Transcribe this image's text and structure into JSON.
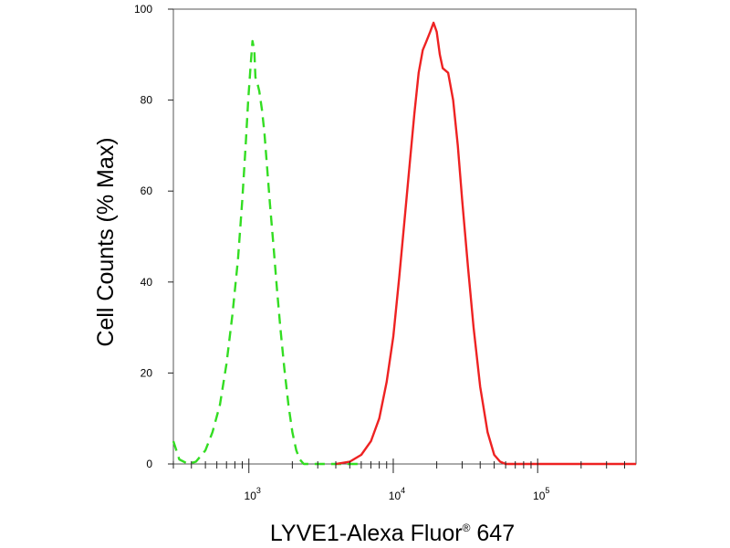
{
  "chart_data": {
    "type": "line",
    "title": "",
    "xlabel": "LYVE1-Alexa Fluor",
    "xlabel_superscript": "®",
    "xlabel_suffix": " 647",
    "ylabel": "Cell Counts (% Max)",
    "x_scale": "log",
    "xlim": [
      300,
      480000
    ],
    "ylim": [
      0,
      100
    ],
    "grid": false,
    "y_ticks": [
      {
        "value": 0,
        "label": "0"
      },
      {
        "value": 20,
        "label": "20"
      },
      {
        "value": 40,
        "label": "40"
      },
      {
        "value": 60,
        "label": "60"
      },
      {
        "value": 80,
        "label": "80"
      },
      {
        "value": 100,
        "label": "100"
      }
    ],
    "x_ticks": [
      {
        "value": 1000,
        "base": "10",
        "exp": "3"
      },
      {
        "value": 10000,
        "base": "10",
        "exp": "4"
      },
      {
        "value": 100000,
        "base": "10",
        "exp": "5"
      }
    ],
    "series": [
      {
        "color": "#33dd22",
        "style": "dashed",
        "x": [
          300,
          330,
          380,
          430,
          500,
          560,
          630,
          700,
          770,
          840,
          900,
          950,
          990,
          1030,
          1060,
          1090,
          1110,
          1140,
          1180,
          1230,
          1280,
          1340,
          1400,
          1480,
          1560,
          1650,
          1760,
          1880,
          2000,
          2130,
          2250,
          2400,
          2600,
          2800,
          3200,
          4000,
          5000,
          6000
        ],
        "y": [
          5,
          1,
          0,
          0.5,
          3,
          7,
          13,
          22,
          33,
          45,
          58,
          70,
          80,
          88,
          93,
          91,
          85,
          84,
          82,
          78,
          73,
          65,
          57,
          48,
          39,
          30,
          21,
          13,
          7,
          3,
          1,
          0,
          0,
          0,
          0,
          0,
          0,
          0
        ]
      },
      {
        "color": "#ee2222",
        "style": "solid",
        "x": [
          4000,
          5000,
          6000,
          7000,
          8000,
          9000,
          10000,
          11000,
          12000,
          13000,
          14000,
          15000,
          16000,
          17000,
          18000,
          19000,
          20000,
          21000,
          22000,
          24000,
          26000,
          28000,
          30000,
          33000,
          36000,
          40000,
          45000,
          50000,
          55000,
          60000,
          70000,
          100000,
          200000,
          480000
        ],
        "y": [
          0,
          0.5,
          2,
          5,
          10,
          18,
          28,
          41,
          54,
          66,
          77,
          86,
          91,
          93,
          95,
          97,
          95,
          90,
          87,
          86,
          80,
          70,
          58,
          43,
          30,
          17,
          7,
          2,
          0.5,
          0,
          0,
          0,
          0,
          0
        ]
      }
    ]
  }
}
